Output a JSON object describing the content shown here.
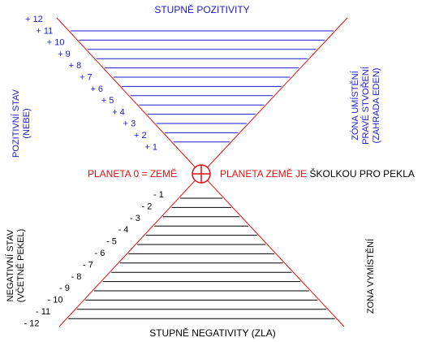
{
  "top_title": "STUPNĚ POZITIVITY",
  "bottom_title": "STUPNĚ NEGATIVITY (ZLA)",
  "positive_state": {
    "line1": "POZITIVNÍ STAV",
    "line2": "(NEBE)"
  },
  "negative_state": {
    "line1": "NEGATIVNÍ STAV",
    "line2": "(VČETNĚ PEKEL)"
  },
  "creation_zone": {
    "line1": "ZÓNA UMÍSTĚNÍ",
    "line2": "PRAVÉ STVOŘENÍ",
    "line3": "(ZAHRADA EDEN)"
  },
  "expulsion_zone": {
    "line1": "ZONA VYMÍSTĚNÍ"
  },
  "center": {
    "left_label": "PLANETA 0 = ZEMĚ",
    "right_label_red": "PLANETA ZEMĚ JE ",
    "right_label_black": "ŠKOLKOU PRO PEKLA"
  },
  "positive_degrees": [
    "+ 12",
    "+ 11",
    "+ 10",
    "+ 9",
    "+ 8",
    "+ 7",
    "+ 6",
    "+ 5",
    "+ 4",
    "+ 3",
    "+ 2",
    "+ 1"
  ],
  "negative_degrees": [
    "- 1",
    "- 2",
    "- 3",
    "- 4",
    "- 5",
    "- 6",
    "- 7",
    "- 8",
    "- 9",
    "- 10",
    "- 11",
    "- 12"
  ],
  "colors": {
    "blue": "#1a1acc",
    "red": "#dd1111",
    "black": "#000000"
  }
}
